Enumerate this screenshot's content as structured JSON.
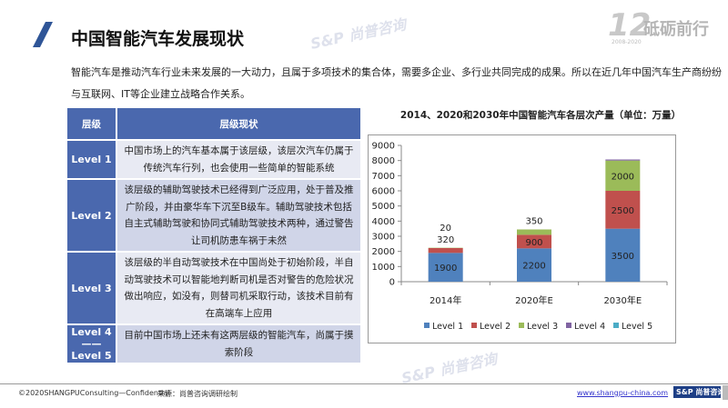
{
  "header": {
    "title": "中国智能汽车发展现状",
    "logo_text": "砥砺前行",
    "logo_number": "12",
    "logo_years": "2008-2020"
  },
  "intro": [
    "智能汽车是推动汽车行业未来发展的一大动力，且属于多项技术的集合体，需要多企业、多行业共同完成的成果。所以在近几年中国汽车生产商纷纷",
    "与互联网、IT等企业建立战略合作关系。"
  ],
  "table": {
    "headers": [
      "层级",
      "层级现状"
    ],
    "rows": [
      {
        "level": "Level 1",
        "desc": "中国市场上的汽车基本属于该层级，该层次汽车仍属于传统汽车行列，也会使用一些简单的智能系统"
      },
      {
        "level": "Level 2",
        "desc": "该层级的辅助驾驶技术已经得到广泛应用，处于普及推广阶段，并由豪华车下沉至B级车。辅助驾驶技术包括自主式辅助驾驶和协同式辅助驾驶技术两种，通过警告让司机防患车祸于未然"
      },
      {
        "level": "Level 3",
        "desc": "该层级的半自动驾驶技术在中国尚处于初始阶段，半自动驾驶技术可以智能地判断司机是否对警告的危险状况做出响应，如没有，则替司机采取行动，该技术目前有在高端车上应用"
      },
      {
        "level": "Level 4——Level 5",
        "desc": "目前中国市场上还未有这两层级的智能汽车，尚属于摸索阶段"
      }
    ]
  },
  "chart_data": {
    "type": "bar",
    "stacked": true,
    "title": "2014、2020和2030年中国智能汽车各层次产量（单位：万量）",
    "categories": [
      "2014年",
      "2020年E",
      "2030年E"
    ],
    "ylim": [
      0,
      9000
    ],
    "yticks": [
      "0",
      "1000",
      "2000",
      "3000",
      "4000",
      "5000",
      "6000",
      "7000",
      "8000",
      "9000"
    ],
    "legend_position": "bottom",
    "series": [
      {
        "name": "Level 1",
        "color": "#4f81bd",
        "values": [
          1900,
          2200,
          3500
        ],
        "labels": [
          "1900",
          "2200",
          "3500"
        ]
      },
      {
        "name": "Level 2",
        "color": "#c0504d",
        "values": [
          320,
          900,
          2500
        ],
        "labels": [
          "320",
          "900",
          "2500"
        ]
      },
      {
        "name": "Level 3",
        "color": "#9bbb59",
        "values": [
          20,
          350,
          2000
        ],
        "labels": [
          "20",
          "350",
          "2000"
        ]
      },
      {
        "name": "Level 4",
        "color": "#8064a2",
        "values": [
          0,
          0,
          70
        ],
        "labels": [
          "",
          "",
          ""
        ]
      },
      {
        "name": "Level 5",
        "color": "#4bacc6",
        "values": [
          0,
          0,
          0
        ],
        "labels": [
          "",
          "",
          ""
        ]
      }
    ]
  },
  "footer": {
    "copyright": "©2020SHANGPUConsulting—Confidential",
    "source": "来源：尚普咨询调研绘制",
    "website": "www.shangpu-china.com",
    "badge": "S&P 尚普咨询"
  },
  "watermark": "S&P 尚普咨询"
}
